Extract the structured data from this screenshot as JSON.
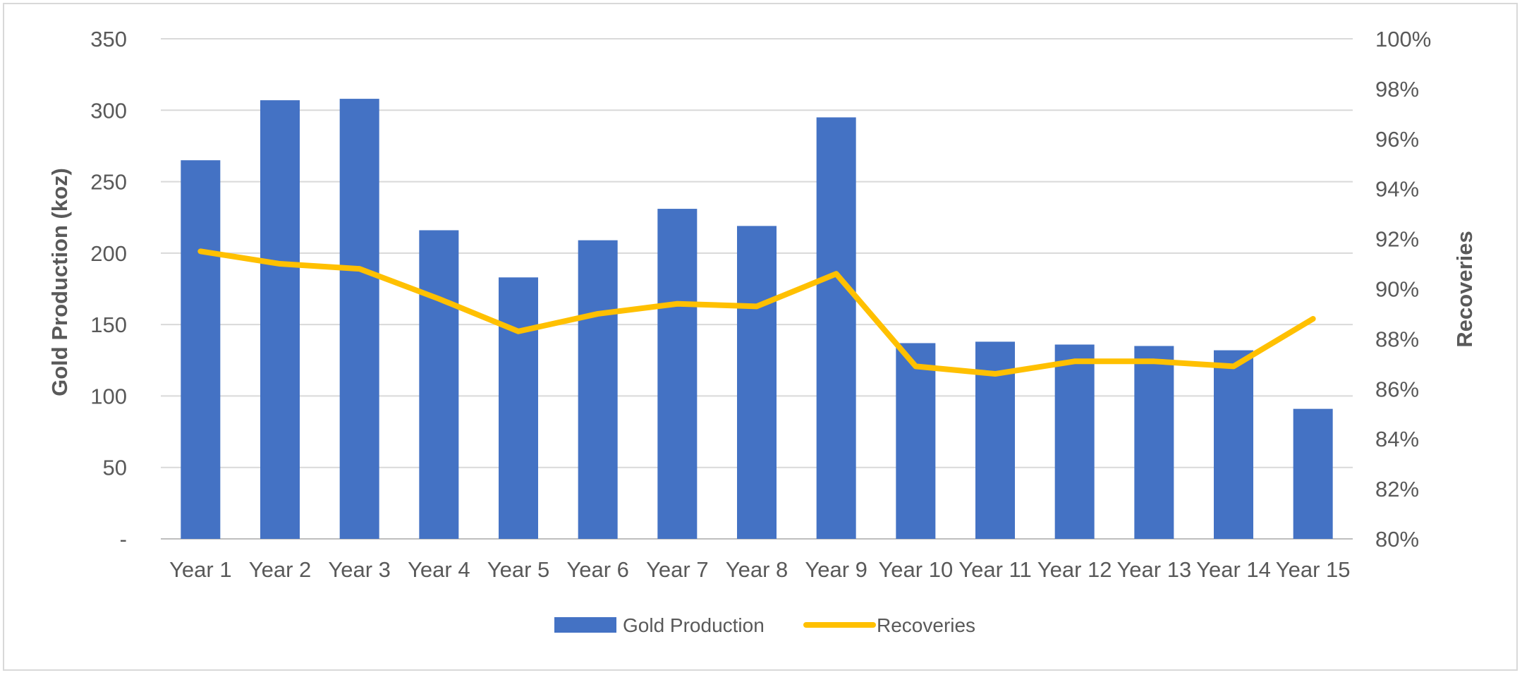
{
  "chart_data": {
    "type": "bar+line",
    "categories": [
      "Year 1",
      "Year 2",
      "Year 3",
      "Year 4",
      "Year 5",
      "Year 6",
      "Year 7",
      "Year 8",
      "Year 9",
      "Year 10",
      "Year 11",
      "Year 12",
      "Year 13",
      "Year 14",
      "Year 15"
    ],
    "series": [
      {
        "name": "Gold Production",
        "type": "bar",
        "axis": "left",
        "color": "#4472C4",
        "values": [
          265,
          307,
          308,
          216,
          183,
          209,
          231,
          219,
          295,
          137,
          138,
          136,
          135,
          132,
          91
        ]
      },
      {
        "name": "Recoveries",
        "type": "line",
        "axis": "right",
        "color": "#FFC000",
        "values": [
          0.915,
          0.91,
          0.908,
          0.896,
          0.883,
          0.89,
          0.894,
          0.893,
          0.906,
          0.869,
          0.866,
          0.871,
          0.871,
          0.869,
          0.888
        ]
      }
    ],
    "ylabel": "Gold Production (koz)",
    "y2label": "Recoveries",
    "ylim": [
      0,
      350
    ],
    "y2lim": [
      0.8,
      1.0
    ],
    "yticks": [
      "-",
      "50",
      "100",
      "150",
      "200",
      "250",
      "300",
      "350"
    ],
    "y2ticks": [
      "80%",
      "82%",
      "84%",
      "86%",
      "88%",
      "90%",
      "92%",
      "94%",
      "96%",
      "98%",
      "100%"
    ],
    "grid": true,
    "legend": "bottom-center"
  }
}
